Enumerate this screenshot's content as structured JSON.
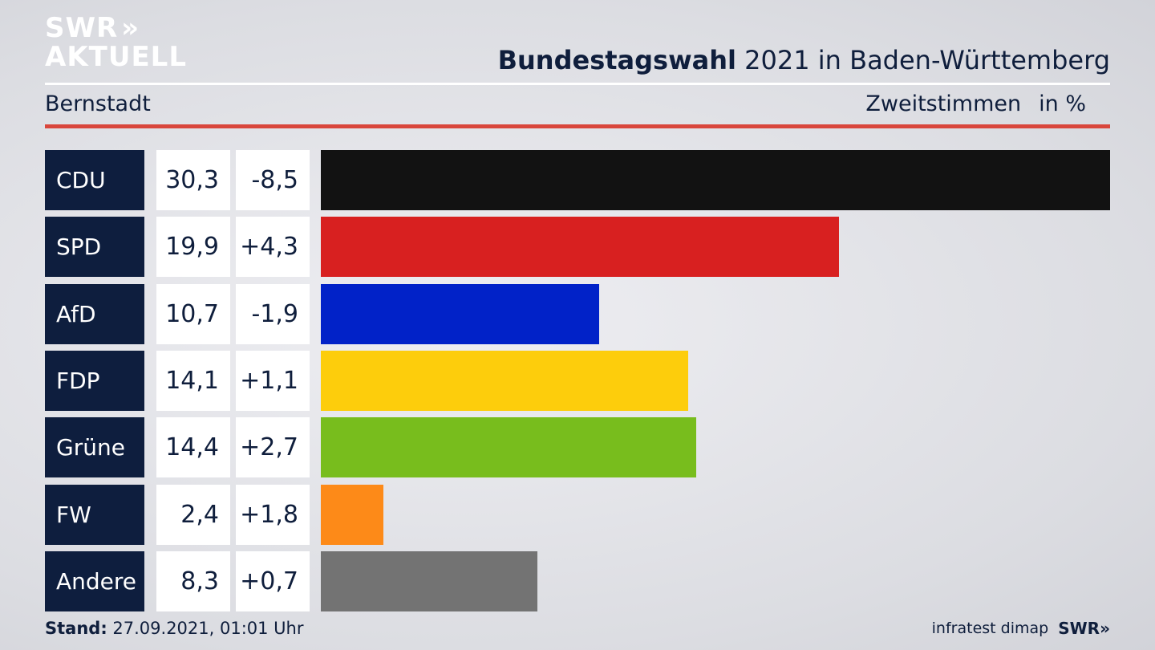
{
  "logo": {
    "line1": "SWR",
    "line2": "AKTUELL",
    "chevrons": "»"
  },
  "header": {
    "title_bold": "Bundestagswahl",
    "title_rest": " 2021 in Baden-Württemberg"
  },
  "subheader": {
    "location": "Bernstadt",
    "measure": "Zweitstimmen",
    "unit": "in %"
  },
  "footer": {
    "stand_label": "Stand:",
    "stand_value": " 27.09.2021, 01:01 Uhr",
    "source": "infratest dimap",
    "brand": "SWR»"
  },
  "chart_data": {
    "type": "bar",
    "orientation": "horizontal",
    "categories": [
      "CDU",
      "SPD",
      "AfD",
      "FDP",
      "Grüne",
      "FW",
      "Andere"
    ],
    "values": [
      30.3,
      19.9,
      10.7,
      14.1,
      14.4,
      2.4,
      8.3
    ],
    "value_labels": [
      "30,3",
      "19,9",
      "10,7",
      "14,1",
      "14,4",
      "2,4",
      "8,3"
    ],
    "diff_labels": [
      "-8,5",
      "+4,3",
      "-1,9",
      "+1,1",
      "+2,7",
      "+1,8",
      "+0,7"
    ],
    "colors": [
      "#121212",
      "#d82020",
      "#0122c8",
      "#fdcd0c",
      "#78bd1d",
      "#fd8a18",
      "#737373"
    ],
    "xlim": [
      0,
      30.3
    ]
  }
}
